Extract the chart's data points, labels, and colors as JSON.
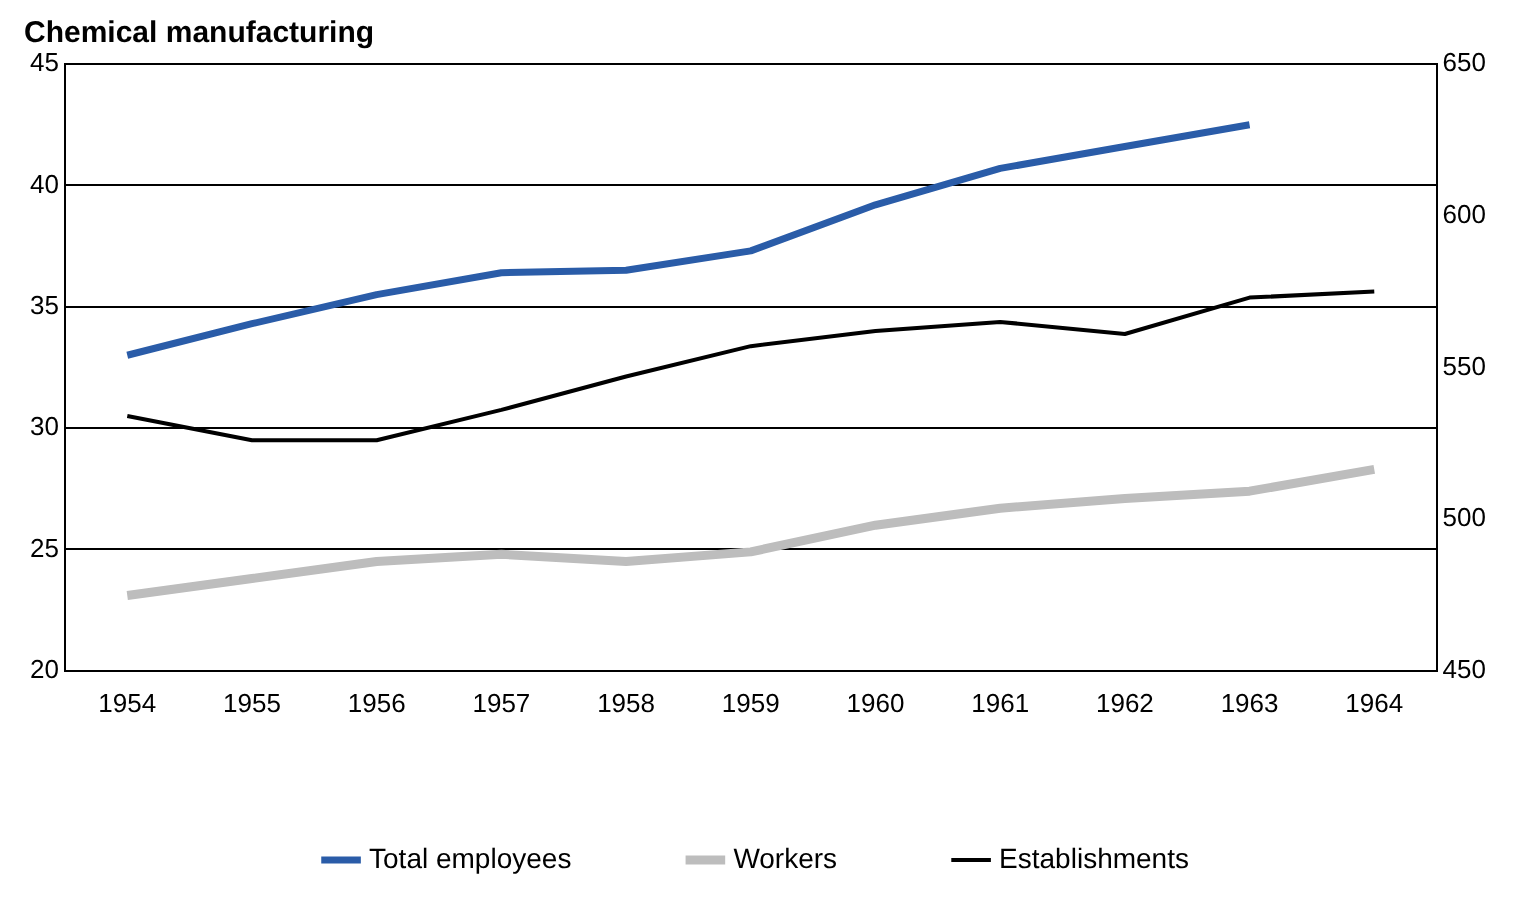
{
  "chart_data": {
    "type": "line",
    "title": "Chemical manufacturing",
    "categories": [
      "1954",
      "1955",
      "1956",
      "1957",
      "1958",
      "1959",
      "1960",
      "1961",
      "1962",
      "1963",
      "1964"
    ],
    "series": [
      {
        "name": "Total employees",
        "color": "#2a5ca8",
        "values": [
          33.0,
          34.3,
          35.5,
          36.4,
          36.5,
          37.3,
          39.2,
          40.7,
          41.6,
          42.5,
          null
        ]
      },
      {
        "name": "Workers",
        "color": "#bdbdbd",
        "values": [
          23.1,
          23.8,
          24.5,
          24.8,
          24.5,
          24.9,
          26.0,
          26.7,
          27.1,
          27.4,
          28.3
        ]
      },
      {
        "name": "Establishments",
        "color": "#000000",
        "axis": "y2",
        "values": [
          534,
          526,
          526,
          536,
          547,
          557,
          562,
          565,
          561,
          573,
          575
        ]
      }
    ],
    "ylim": [
      20,
      45
    ],
    "yticks": [
      20,
      25,
      30,
      35,
      40,
      45
    ],
    "y2lim": [
      450,
      650
    ],
    "y2ticks": [
      450,
      500,
      550,
      600,
      650
    ],
    "grid": "y",
    "legend": "bottom",
    "marker": "none",
    "line_style": "solid"
  }
}
